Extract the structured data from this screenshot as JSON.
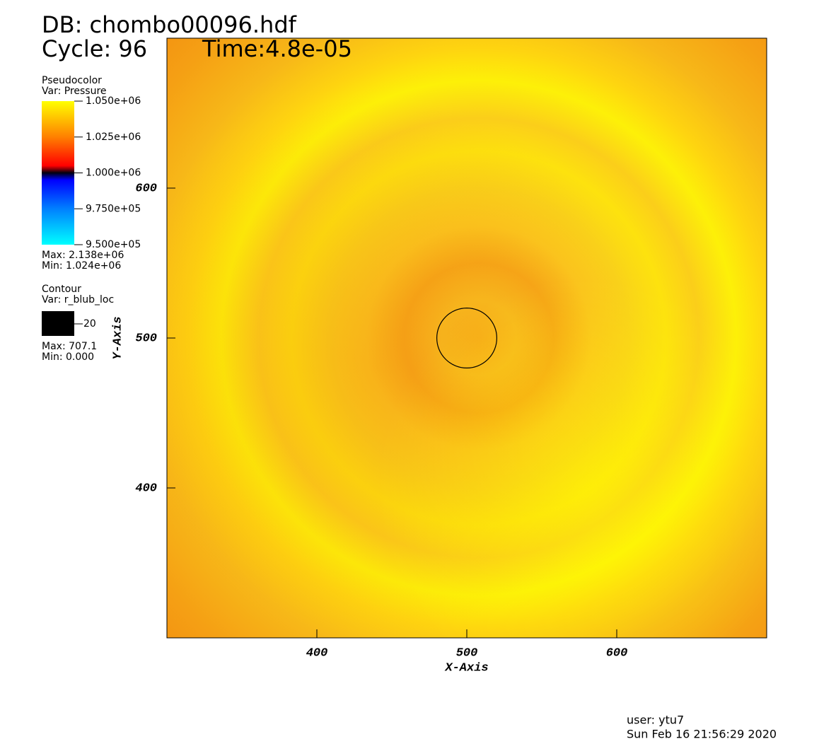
{
  "chart_data": {
    "type": "pseudocolor",
    "title": "DB: chombo00096.hdf",
    "cycle": "Cycle: 96",
    "time": "Time:4.8e-05",
    "x_label": "X-Axis",
    "y_label": "Y-Axis",
    "xlim": [
      300,
      700
    ],
    "ylim": [
      300,
      700
    ],
    "xticks": [
      400,
      500,
      600
    ],
    "yticks": [
      400,
      500,
      600
    ],
    "pseudocolor": {
      "title": "Pseudocolor",
      "var": "Var: Pressure",
      "ticks": [
        {
          "value": 1050000,
          "label": "1.050e+06"
        },
        {
          "value": 1025000,
          "label": "1.025e+06"
        },
        {
          "value": 1000000,
          "label": "1.000e+06"
        },
        {
          "value": 975000,
          "label": "9.750e+05"
        },
        {
          "value": 950000,
          "label": "9.500e+05"
        }
      ],
      "max": "Max: 2.138e+06",
      "min": "Min: 1.024e+06"
    },
    "contour": {
      "title": "Contour",
      "var": "Var: r_blub_loc",
      "level": 20,
      "color": "#000000",
      "max": "Max: 707.1",
      "min": "Min: 0.000"
    },
    "user": "user: ytu7",
    "date": "Sun Feb 16 21:56:29 2020"
  }
}
